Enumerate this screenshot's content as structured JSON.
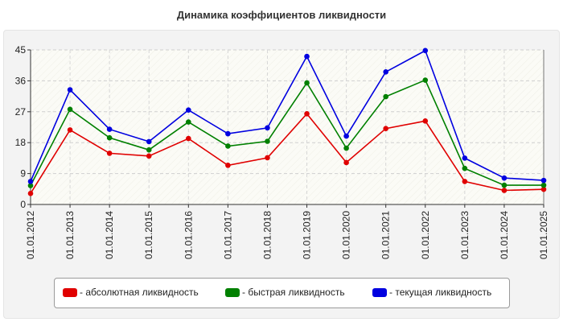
{
  "chart_data": {
    "type": "line",
    "title": "Динамика коэффициентов ликвидности",
    "xlabel": "",
    "ylabel": "",
    "categories": [
      "01.01.2012",
      "01.01.2013",
      "01.01.2014",
      "01.01.2015",
      "01.01.2016",
      "01.01.2017",
      "01.01.2018",
      "01.01.2019",
      "01.01.2020",
      "01.01.2021",
      "01.01.2022",
      "01.01.2023",
      "01.01.2024",
      "01.01.2025"
    ],
    "ylim": [
      0,
      45
    ],
    "yticks": [
      0,
      9,
      18,
      27,
      36,
      45
    ],
    "grid": true,
    "legend_position": "bottom",
    "series": [
      {
        "name": "- абсолютная ликвидность",
        "color": "#e00000",
        "values": [
          3.2,
          21.7,
          14.9,
          14.1,
          19.2,
          11.4,
          13.6,
          26.4,
          12.2,
          22.1,
          24.3,
          6.7,
          4.1,
          4.4
        ]
      },
      {
        "name": "- быстрая ликвидность",
        "color": "#008000",
        "values": [
          5.5,
          27.7,
          19.4,
          15.9,
          24.0,
          17.0,
          18.4,
          35.4,
          16.4,
          31.4,
          36.2,
          10.5,
          5.6,
          5.6
        ]
      },
      {
        "name": "- текущая ликвидность",
        "color": "#0000e0",
        "values": [
          6.7,
          33.4,
          21.9,
          18.3,
          27.5,
          20.6,
          22.3,
          43.1,
          19.9,
          38.6,
          44.8,
          13.5,
          7.7,
          7.0
        ]
      }
    ]
  }
}
